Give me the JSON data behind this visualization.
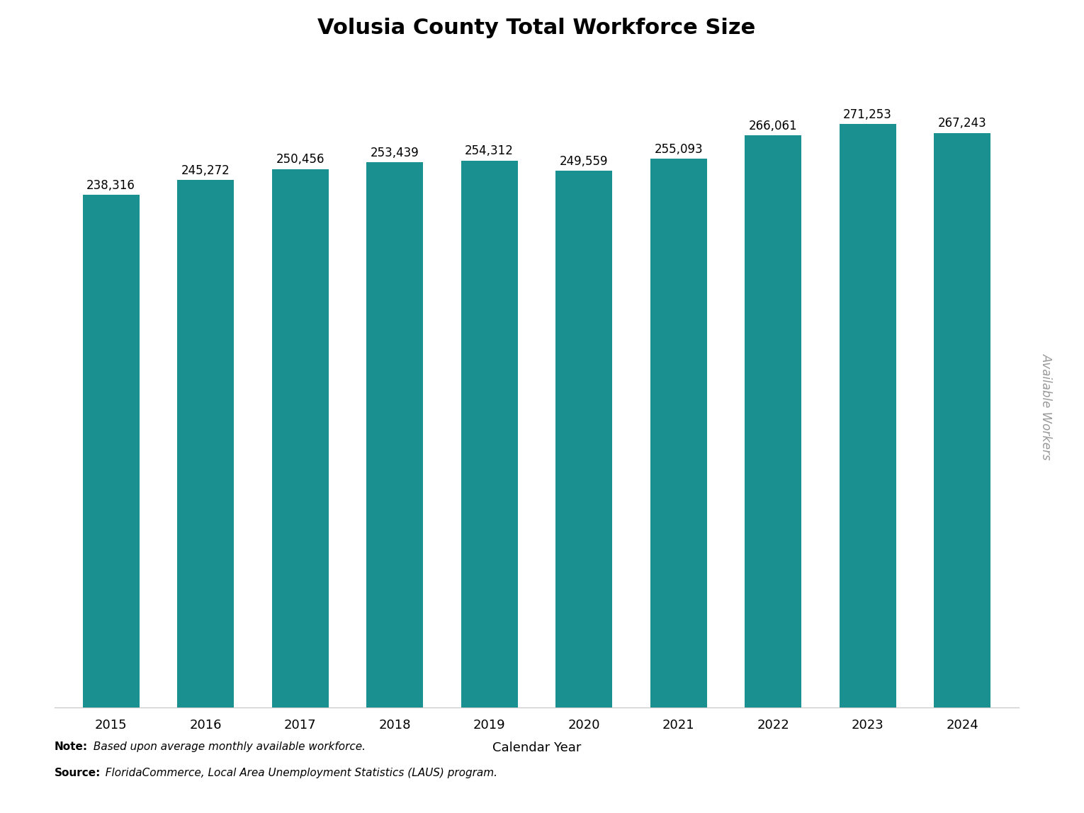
{
  "title": "Volusia County Total Workforce Size",
  "years": [
    2015,
    2016,
    2017,
    2018,
    2019,
    2020,
    2021,
    2022,
    2023,
    2024
  ],
  "values": [
    238316,
    245272,
    250456,
    253439,
    254312,
    249559,
    255093,
    266061,
    271253,
    267243
  ],
  "bar_color": "#1a9090",
  "xlabel": "Calendar Year",
  "ylabel": "Available Workers",
  "note_bold": "Note:",
  "note_text": " Based upon average monthly available workforce.",
  "source_bold": "Source:",
  "source_text": "  FloridaCommerce, Local Area Unemployment Statistics (LAUS) program.",
  "title_fontsize": 22,
  "xlabel_fontsize": 13,
  "bar_label_fontsize": 12,
  "tick_fontsize": 13,
  "ylabel_fontsize": 12,
  "ylabel_color": "#999999",
  "note_fontsize": 11,
  "background_color": "#ffffff",
  "ylim_min": 0,
  "ylim_max": 295000
}
